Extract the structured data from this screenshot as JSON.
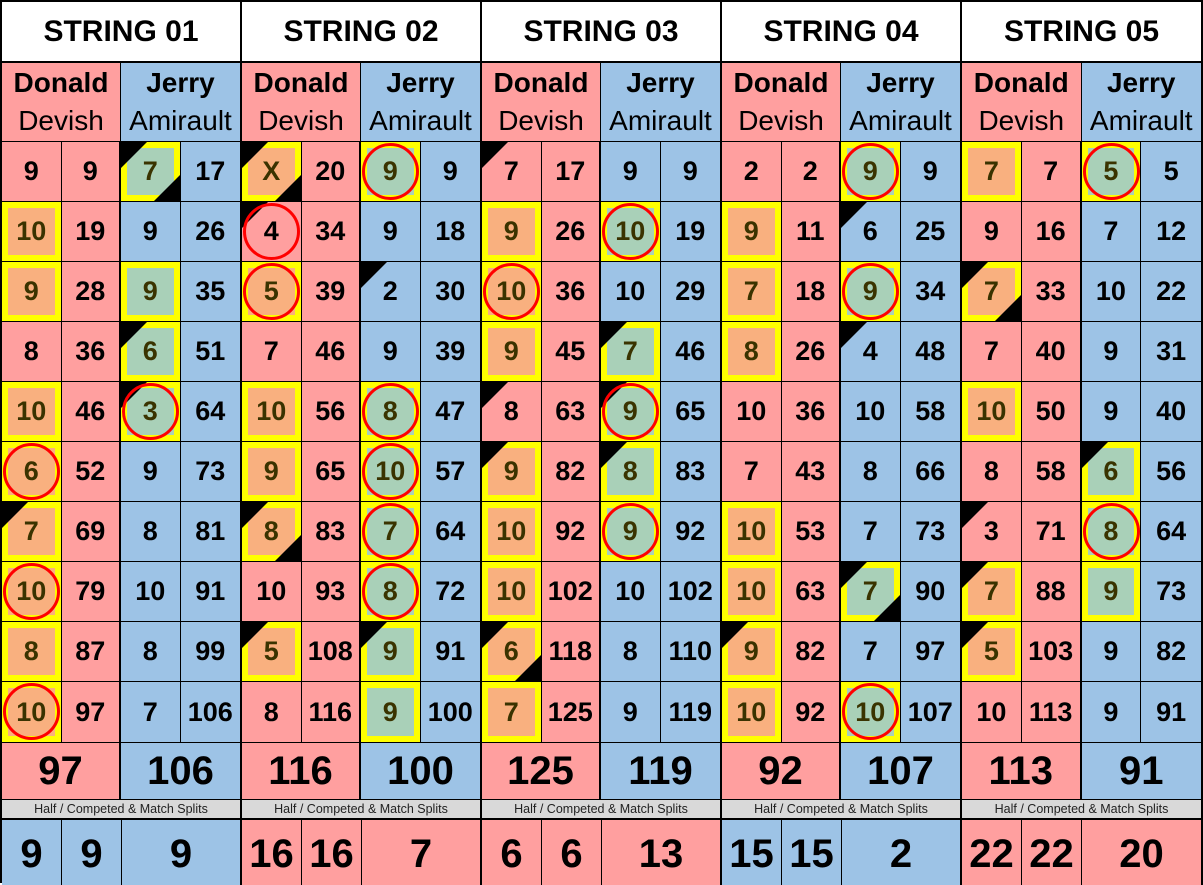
{
  "colors": {
    "donald": "#FF9F9F",
    "jerry": "#9DC3E6",
    "highlight_border": "#FFFF00",
    "highlight_donald": "#F9B07F",
    "highlight_jerry": "#A9D0B8",
    "circle": "#FF0000"
  },
  "players": {
    "donald": {
      "first": "Donald",
      "last": "Devish"
    },
    "jerry": {
      "first": "Jerry",
      "last": "Amirault"
    }
  },
  "split_label": "Half / Competed & Match Splits",
  "strings": [
    {
      "title": "STRING 01",
      "donald": {
        "frames": [
          {
            "v": "9"
          },
          {
            "v": "10",
            "hl": 1
          },
          {
            "v": "9",
            "hl": 1
          },
          {
            "v": "8"
          },
          {
            "v": "10",
            "hl": 1
          },
          {
            "v": "6",
            "hl": 1,
            "c": 1
          },
          {
            "v": "7",
            "hl": 1,
            "tl": 1
          },
          {
            "v": "10",
            "hl": 1,
            "c": 1
          },
          {
            "v": "8",
            "hl": 1
          },
          {
            "v": "10",
            "hl": 1,
            "c": 1
          }
        ],
        "running": [
          "9",
          "19",
          "28",
          "36",
          "46",
          "52",
          "69",
          "79",
          "87",
          "97"
        ],
        "total": "97"
      },
      "jerry": {
        "frames": [
          {
            "v": "7",
            "hl": 1,
            "tl": 1,
            "br": 1
          },
          {
            "v": "9"
          },
          {
            "v": "9",
            "hl": 1
          },
          {
            "v": "6",
            "hl": 1,
            "tl": 1
          },
          {
            "v": "3",
            "hl": 1,
            "tl": 1,
            "c": 1
          },
          {
            "v": "9"
          },
          {
            "v": "8"
          },
          {
            "v": "10"
          },
          {
            "v": "8"
          },
          {
            "v": "7"
          }
        ],
        "running": [
          "17",
          "26",
          "35",
          "51",
          "64",
          "73",
          "81",
          "91",
          "99",
          "106"
        ],
        "total": "106"
      },
      "splits": [
        "9",
        "9",
        "9"
      ],
      "split_color": "#9DC3E6"
    },
    {
      "title": "STRING 02",
      "donald": {
        "frames": [
          {
            "v": "X",
            "hl": 1,
            "tl": 1,
            "br": 1
          },
          {
            "v": "4",
            "tl": 1,
            "c": 1
          },
          {
            "v": "5",
            "hl": 1,
            "c": 1
          },
          {
            "v": "7"
          },
          {
            "v": "10",
            "hl": 1
          },
          {
            "v": "9",
            "hl": 1
          },
          {
            "v": "8",
            "hl": 1,
            "tl": 1,
            "br": 1
          },
          {
            "v": "10"
          },
          {
            "v": "5",
            "hl": 1,
            "tl": 1
          },
          {
            "v": "8"
          }
        ],
        "running": [
          "20",
          "34",
          "39",
          "46",
          "56",
          "65",
          "83",
          "93",
          "108",
          "116"
        ],
        "total": "116"
      },
      "jerry": {
        "frames": [
          {
            "v": "9",
            "hl": 1,
            "c": 1
          },
          {
            "v": "9"
          },
          {
            "v": "2",
            "tl": 1
          },
          {
            "v": "9"
          },
          {
            "v": "8",
            "hl": 1,
            "c": 1
          },
          {
            "v": "10",
            "hl": 1,
            "c": 1
          },
          {
            "v": "7",
            "hl": 1,
            "c": 1
          },
          {
            "v": "8",
            "hl": 1,
            "c": 1
          },
          {
            "v": "9",
            "hl": 1,
            "tl": 1
          },
          {
            "v": "9",
            "hl": 1
          }
        ],
        "running": [
          "9",
          "18",
          "30",
          "39",
          "47",
          "57",
          "64",
          "72",
          "91",
          "100"
        ],
        "total": "100"
      },
      "splits": [
        "16",
        "16",
        "7"
      ],
      "split_color": "#FF9F9F"
    },
    {
      "title": "STRING 03",
      "donald": {
        "frames": [
          {
            "v": "7",
            "tl": 1
          },
          {
            "v": "9",
            "hl": 1
          },
          {
            "v": "10",
            "hl": 1,
            "c": 1
          },
          {
            "v": "9",
            "hl": 1
          },
          {
            "v": "8",
            "tl": 1
          },
          {
            "v": "9",
            "hl": 1,
            "tl": 1
          },
          {
            "v": "10",
            "hl": 1
          },
          {
            "v": "10",
            "hl": 1
          },
          {
            "v": "6",
            "hl": 1,
            "tl": 1,
            "br": 1
          },
          {
            "v": "7",
            "hl": 1
          }
        ],
        "running": [
          "17",
          "26",
          "36",
          "45",
          "63",
          "82",
          "92",
          "102",
          "118",
          "125"
        ],
        "total": "125"
      },
      "jerry": {
        "frames": [
          {
            "v": "9"
          },
          {
            "v": "10",
            "hl": 1,
            "c": 1
          },
          {
            "v": "10"
          },
          {
            "v": "7",
            "hl": 1,
            "tl": 1
          },
          {
            "v": "9",
            "hl": 1,
            "tl": 1,
            "c": 1
          },
          {
            "v": "8",
            "hl": 1,
            "tl": 1
          },
          {
            "v": "9",
            "hl": 1,
            "c": 1
          },
          {
            "v": "10"
          },
          {
            "v": "8"
          },
          {
            "v": "9"
          }
        ],
        "running": [
          "9",
          "19",
          "29",
          "46",
          "65",
          "83",
          "92",
          "102",
          "110",
          "119"
        ],
        "total": "119"
      },
      "splits": [
        "6",
        "6",
        "13"
      ],
      "split_color": "#FF9F9F"
    },
    {
      "title": "STRING 04",
      "donald": {
        "frames": [
          {
            "v": "2"
          },
          {
            "v": "9",
            "hl": 1
          },
          {
            "v": "7",
            "hl": 1
          },
          {
            "v": "8",
            "hl": 1
          },
          {
            "v": "10"
          },
          {
            "v": "7"
          },
          {
            "v": "10",
            "hl": 1
          },
          {
            "v": "10",
            "hl": 1
          },
          {
            "v": "9",
            "hl": 1,
            "tl": 1
          },
          {
            "v": "10",
            "hl": 1
          }
        ],
        "running": [
          "2",
          "11",
          "18",
          "26",
          "36",
          "43",
          "53",
          "63",
          "82",
          "92"
        ],
        "total": "92"
      },
      "jerry": {
        "frames": [
          {
            "v": "9",
            "hl": 1,
            "c": 1
          },
          {
            "v": "6",
            "tl": 1
          },
          {
            "v": "9",
            "hl": 1,
            "c": 1
          },
          {
            "v": "4",
            "tl": 1
          },
          {
            "v": "10"
          },
          {
            "v": "8"
          },
          {
            "v": "7"
          },
          {
            "v": "7",
            "hl": 1,
            "tl": 1,
            "br": 1
          },
          {
            "v": "7"
          },
          {
            "v": "10",
            "hl": 1,
            "c": 1
          }
        ],
        "running": [
          "9",
          "25",
          "34",
          "48",
          "58",
          "66",
          "73",
          "90",
          "97",
          "107"
        ],
        "total": "107"
      },
      "splits": [
        "15",
        "15",
        "2"
      ],
      "split_color": "#9DC3E6"
    },
    {
      "title": "STRING 05",
      "donald": {
        "frames": [
          {
            "v": "7",
            "hl": 1
          },
          {
            "v": "9"
          },
          {
            "v": "7",
            "hl": 1,
            "tl": 1,
            "br": 1
          },
          {
            "v": "7"
          },
          {
            "v": "10",
            "hl": 1
          },
          {
            "v": "8"
          },
          {
            "v": "3",
            "tl": 1
          },
          {
            "v": "7",
            "hl": 1,
            "tl": 1
          },
          {
            "v": "5",
            "hl": 1,
            "tl": 1
          },
          {
            "v": "10"
          }
        ],
        "running": [
          "7",
          "16",
          "33",
          "40",
          "50",
          "58",
          "71",
          "88",
          "103",
          "113"
        ],
        "total": "113"
      },
      "jerry": {
        "frames": [
          {
            "v": "5",
            "hl": 1,
            "c": 1
          },
          {
            "v": "7"
          },
          {
            "v": "10"
          },
          {
            "v": "9"
          },
          {
            "v": "9"
          },
          {
            "v": "6",
            "hl": 1,
            "tl": 1
          },
          {
            "v": "8",
            "hl": 1,
            "c": 1
          },
          {
            "v": "9",
            "hl": 1
          },
          {
            "v": "9"
          },
          {
            "v": "9"
          }
        ],
        "running": [
          "5",
          "12",
          "22",
          "31",
          "40",
          "56",
          "64",
          "73",
          "82",
          "91"
        ],
        "total": "91"
      },
      "splits": [
        "22",
        "22",
        "20"
      ],
      "split_color": "#FF9F9F"
    }
  ]
}
